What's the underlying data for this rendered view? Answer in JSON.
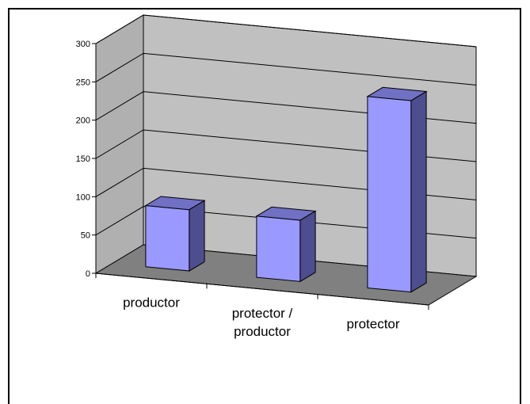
{
  "chart_data": {
    "type": "bar",
    "style": "3d-column",
    "categories": [
      "productor",
      "protector / productor",
      "protector"
    ],
    "category_lines": [
      [
        "productor"
      ],
      [
        "protector /",
        "productor"
      ],
      [
        "protector"
      ]
    ],
    "values": [
      80,
      80,
      250
    ],
    "title": "",
    "xlabel": "",
    "ylabel": "",
    "ylim": [
      0,
      300
    ],
    "yticks": [
      0,
      50,
      100,
      150,
      200,
      250,
      300
    ],
    "grid": true,
    "legend": "none",
    "colors": {
      "bar_front": "#9999ff",
      "bar_side": "#4d4d8f",
      "bar_top": "#7070c4",
      "back_wall": "#c0c0c0",
      "side_wall": "#b0b0b0",
      "floor": "#808080"
    }
  }
}
